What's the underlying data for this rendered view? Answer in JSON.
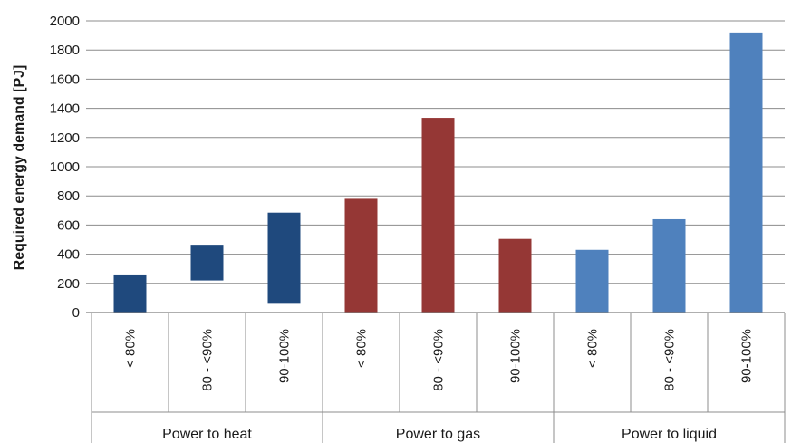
{
  "chart_data": {
    "type": "bar",
    "ylabel": "Required energy demand [PJ]",
    "xlabel": "",
    "ylim": [
      0,
      2000
    ],
    "yticks": [
      0,
      200,
      400,
      600,
      800,
      1000,
      1200,
      1400,
      1600,
      1800,
      2000
    ],
    "grid": "horizontal",
    "groups": [
      {
        "name": "Power to heat",
        "color": "#1f497d",
        "bars": [
          {
            "label": "< 80%",
            "low": 0,
            "high": 255
          },
          {
            "label": "80 - <90%",
            "low": 220,
            "high": 465
          },
          {
            "label": "90-100%",
            "low": 60,
            "high": 685
          }
        ]
      },
      {
        "name": "Power to gas",
        "color": "#953735",
        "bars": [
          {
            "label": "< 80%",
            "low": 0,
            "high": 780
          },
          {
            "label": "80 - <90%",
            "low": 0,
            "high": 1335
          },
          {
            "label": "90-100%",
            "low": 0,
            "high": 505
          }
        ]
      },
      {
        "name": "Power to liquid",
        "color": "#4f81bd",
        "bars": [
          {
            "label": "< 80%",
            "low": 0,
            "high": 430
          },
          {
            "label": "80 - <90%",
            "low": 0,
            "high": 640
          },
          {
            "label": "90-100%",
            "low": 0,
            "high": 1920
          }
        ]
      }
    ]
  }
}
